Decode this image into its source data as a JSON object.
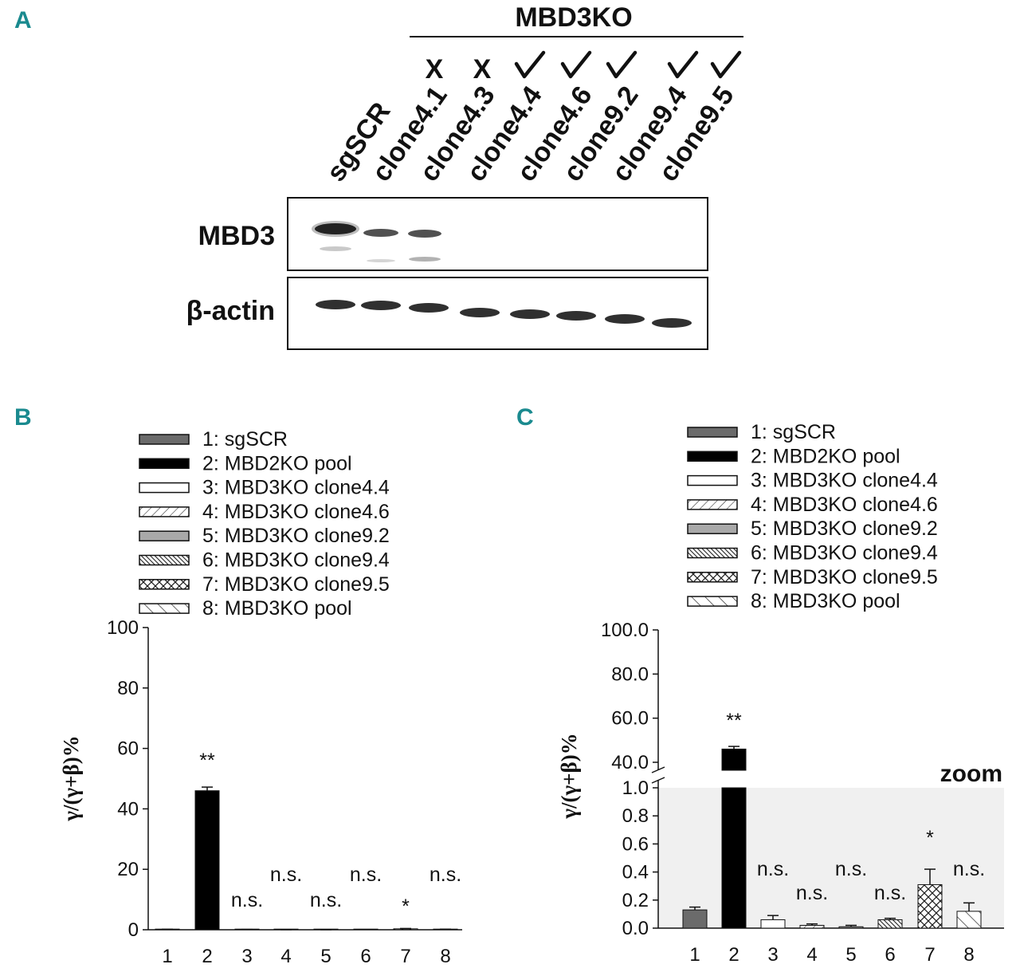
{
  "panels": {
    "a": "A",
    "b": "B",
    "c": "C"
  },
  "western_blot": {
    "group_label": "MBD3KO",
    "lanes": [
      "sgSCR",
      "clone4.1",
      "clone4.3",
      "clone4.4",
      "clone4.6",
      "clone9.2",
      "clone9.4",
      "clone9.5"
    ],
    "marks": [
      "",
      "",
      "X",
      "X",
      "✓",
      "✓",
      "✓",
      "✓",
      "✓"
    ],
    "mark_list": [
      "X",
      "X",
      "✓",
      "✓",
      "✓",
      "✓",
      "✓"
    ],
    "rows": [
      "MBD3",
      "β-actin"
    ]
  },
  "legend": [
    {
      "label": "1: sgSCR",
      "pattern": "gray"
    },
    {
      "label": "2: MBD2KO pool",
      "pattern": "black"
    },
    {
      "label": "3: MBD3KO clone4.4",
      "pattern": "white"
    },
    {
      "label": "4: MBD3KO clone4.6",
      "pattern": "diag-light"
    },
    {
      "label": "5: MBD3KO clone9.2",
      "pattern": "lightgray"
    },
    {
      "label": "6: MBD3KO clone9.4",
      "pattern": "diag-dense"
    },
    {
      "label": "7: MBD3KO clone9.5",
      "pattern": "crosshatch"
    },
    {
      "label": "8: MBD3KO pool",
      "pattern": "diag-back"
    }
  ],
  "chart_data": [
    {
      "type": "bar",
      "panel": "B",
      "categories": [
        "1",
        "2",
        "3",
        "4",
        "5",
        "6",
        "7",
        "8"
      ],
      "values": [
        0.13,
        46.0,
        0.06,
        0.02,
        0.01,
        0.06,
        0.31,
        0.12
      ],
      "errors": [
        0.02,
        1.2,
        0.03,
        0.01,
        0.01,
        0.01,
        0.11,
        0.06
      ],
      "annotations": [
        "",
        "**",
        "n.s.",
        "n.s.",
        "n.s.",
        "n.s.",
        "*",
        "n.s."
      ],
      "ylabel": "γ/(γ+β)%",
      "ylim": [
        0,
        100
      ],
      "yticks": [
        "0",
        "20",
        "40",
        "60",
        "80",
        "100"
      ]
    },
    {
      "type": "bar",
      "panel": "C",
      "categories": [
        "1",
        "2",
        "3",
        "4",
        "5",
        "6",
        "7",
        "8"
      ],
      "values": [
        0.13,
        46.0,
        0.06,
        0.02,
        0.01,
        0.06,
        0.31,
        0.12
      ],
      "errors": [
        0.02,
        1.2,
        0.03,
        0.01,
        0.01,
        0.01,
        0.11,
        0.06
      ],
      "annotations": [
        "",
        "**",
        "n.s.",
        "n.s.",
        "n.s.",
        "n.s.",
        "*",
        "n.s."
      ],
      "ylabel": "γ/(γ+β)%",
      "broken_axis": true,
      "ylim_lower": [
        0,
        1.0
      ],
      "ylim_upper": [
        40,
        100
      ],
      "yticks_lower": [
        "0.0",
        "0.2",
        "0.4",
        "0.6",
        "0.8",
        "1.0"
      ],
      "yticks_upper": [
        "40.0",
        "60.0",
        "80.0",
        "100.0"
      ],
      "zoom_label": "zoom"
    }
  ]
}
